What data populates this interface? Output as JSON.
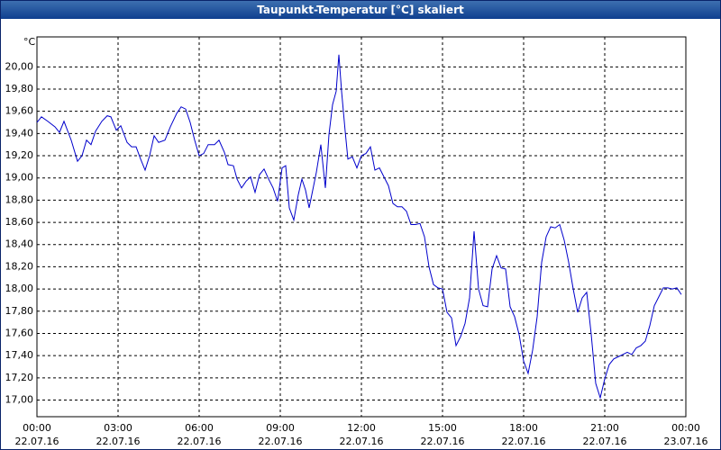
{
  "chart_data": {
    "type": "line",
    "title": "Taupunkt-Temperatur [°C] skaliert",
    "y_unit": "°C",
    "x": [
      0,
      10,
      24,
      40,
      50,
      60,
      76,
      90,
      100,
      110,
      120,
      130,
      144,
      156,
      164,
      176,
      186,
      200,
      210,
      220,
      230,
      240,
      250,
      260,
      270,
      284,
      296,
      310,
      320,
      330,
      340,
      350,
      360,
      370,
      380,
      394,
      404,
      416,
      424,
      436,
      444,
      454,
      464,
      474,
      484,
      494,
      504,
      514,
      524,
      534,
      544,
      552,
      560,
      570,
      580,
      588,
      596,
      604,
      612,
      620,
      630,
      640,
      648,
      656,
      664,
      670,
      676,
      684,
      690,
      700,
      710,
      720,
      730,
      740,
      750,
      760,
      770,
      780,
      790,
      800,
      810,
      820,
      830,
      840,
      850,
      860,
      870,
      880,
      890,
      900,
      910,
      920,
      930,
      940,
      950,
      960,
      970,
      980,
      990,
      1000,
      1010,
      1020,
      1030,
      1040,
      1050,
      1060,
      1070,
      1080,
      1090,
      1100,
      1110,
      1120,
      1130,
      1140,
      1150,
      1160,
      1170,
      1180,
      1190,
      1200,
      1210,
      1220,
      1230,
      1240,
      1250,
      1260,
      1270,
      1280,
      1290,
      1300,
      1310,
      1320,
      1330,
      1340,
      1350,
      1360,
      1370,
      1380,
      1390,
      1400,
      1410,
      1420,
      1430
    ],
    "series": [
      {
        "name": "Taupunkt-Temperatur",
        "color": "#0000cc",
        "values": [
          19.5,
          19.55,
          19.51,
          19.46,
          19.41,
          19.51,
          19.34,
          19.15,
          19.2,
          19.34,
          19.3,
          19.42,
          19.51,
          19.56,
          19.55,
          19.43,
          19.47,
          19.32,
          19.28,
          19.28,
          19.17,
          19.07,
          19.2,
          19.38,
          19.32,
          19.34,
          19.46,
          19.58,
          19.64,
          19.62,
          19.5,
          19.34,
          19.2,
          19.22,
          19.3,
          19.3,
          19.34,
          19.23,
          19.12,
          19.11,
          18.99,
          18.91,
          18.97,
          19.01,
          18.87,
          19.03,
          19.08,
          18.99,
          18.91,
          18.79,
          19.09,
          19.11,
          18.73,
          18.62,
          18.85,
          18.99,
          18.89,
          18.73,
          18.89,
          19.05,
          19.3,
          18.91,
          19.39,
          19.66,
          19.78,
          20.11,
          19.78,
          19.42,
          19.17,
          19.19,
          19.09,
          19.2,
          19.22,
          19.28,
          19.07,
          19.09,
          19.01,
          18.93,
          18.77,
          18.74,
          18.74,
          18.7,
          18.58,
          18.58,
          18.59,
          18.47,
          18.2,
          18.04,
          18.01,
          18.0,
          17.79,
          17.74,
          17.49,
          17.57,
          17.69,
          17.92,
          18.52,
          18.0,
          17.85,
          17.84,
          18.18,
          18.3,
          18.19,
          18.18,
          17.84,
          17.75,
          17.59,
          17.35,
          17.24,
          17.45,
          17.75,
          18.24,
          18.47,
          18.56,
          18.55,
          18.58,
          18.44,
          18.24,
          18.0,
          17.79,
          17.92,
          17.97,
          17.59,
          17.15,
          17.02,
          17.19,
          17.32,
          17.37,
          17.39,
          17.41,
          17.43,
          17.41,
          17.47,
          17.49,
          17.53,
          17.67,
          17.85,
          17.93,
          18.01,
          18.01,
          18.0,
          18.01,
          17.95
        ]
      }
    ],
    "xlim": [
      0,
      1440
    ],
    "xticks": [
      {
        "value": 0,
        "label": "00:00"
      },
      {
        "value": 180,
        "label": "03:00"
      },
      {
        "value": 360,
        "label": "06:00"
      },
      {
        "value": 540,
        "label": "09:00"
      },
      {
        "value": 720,
        "label": "12:00"
      },
      {
        "value": 900,
        "label": "15:00"
      },
      {
        "value": 1080,
        "label": "18:00"
      },
      {
        "value": 1260,
        "label": "21:00"
      },
      {
        "value": 1440,
        "label": "00:00"
      }
    ],
    "xtick_dates": [
      "22.07.16",
      "22.07.16",
      "22.07.16",
      "22.07.16",
      "22.07.16",
      "22.07.16",
      "22.07.16",
      "22.07.16",
      "23.07.16"
    ],
    "ylim": [
      16.85,
      20.27
    ],
    "yticks": [
      {
        "value": 17,
        "label": "17,00"
      },
      {
        "value": 17.2,
        "label": "17,20"
      },
      {
        "value": 17.4,
        "label": "17,40"
      },
      {
        "value": 17.6,
        "label": "17,60"
      },
      {
        "value": 17.8,
        "label": "17,80"
      },
      {
        "value": 18,
        "label": "18,00"
      },
      {
        "value": 18.2,
        "label": "18,20"
      },
      {
        "value": 18.4,
        "label": "18,40"
      },
      {
        "value": 18.6,
        "label": "18,60"
      },
      {
        "value": 18.8,
        "label": "18,80"
      },
      {
        "value": 19,
        "label": "19,00"
      },
      {
        "value": 19.2,
        "label": "19,20"
      },
      {
        "value": 19.4,
        "label": "19,40"
      },
      {
        "value": 19.6,
        "label": "19,60"
      },
      {
        "value": 19.8,
        "label": "19,80"
      },
      {
        "value": 20,
        "label": "20,00"
      }
    ],
    "grid": true
  }
}
